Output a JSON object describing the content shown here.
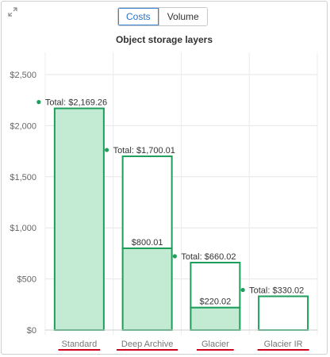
{
  "toggle": {
    "costs_label": "Costs",
    "volume_label": "Volume",
    "selected": "Costs"
  },
  "chart_data": {
    "type": "bar",
    "title": "Object storage layers",
    "categories": [
      "Standard",
      "Deep Archive",
      "Glacier",
      "Glacier IR"
    ],
    "series": [
      {
        "values": [
          2169.26,
          800.01,
          220.02,
          0
        ]
      },
      {
        "values": [
          0,
          900.0,
          440.0,
          330.02
        ]
      }
    ],
    "totals": [
      2169.26,
      1700.01,
      660.02,
      330.02
    ],
    "total_labels": [
      "Total: $2,169.26",
      "Total: $1,700.01",
      "Total: $660.02",
      "Total: $330.02"
    ],
    "segment_labels": [
      "",
      "$800.01",
      "$220.02",
      ""
    ],
    "ylim": [
      0,
      2500
    ],
    "yticks": [
      0,
      500,
      1000,
      1500,
      2000,
      2500
    ],
    "ytick_labels": [
      "$0",
      "$500",
      "$1,000",
      "$1,500",
      "$2,000",
      "$2,500"
    ],
    "colors": {
      "border": "#1e9e5a",
      "fill": "#c3ead3",
      "marker": "#1e9e5a",
      "underline": "#d0021b"
    },
    "grid": true
  }
}
